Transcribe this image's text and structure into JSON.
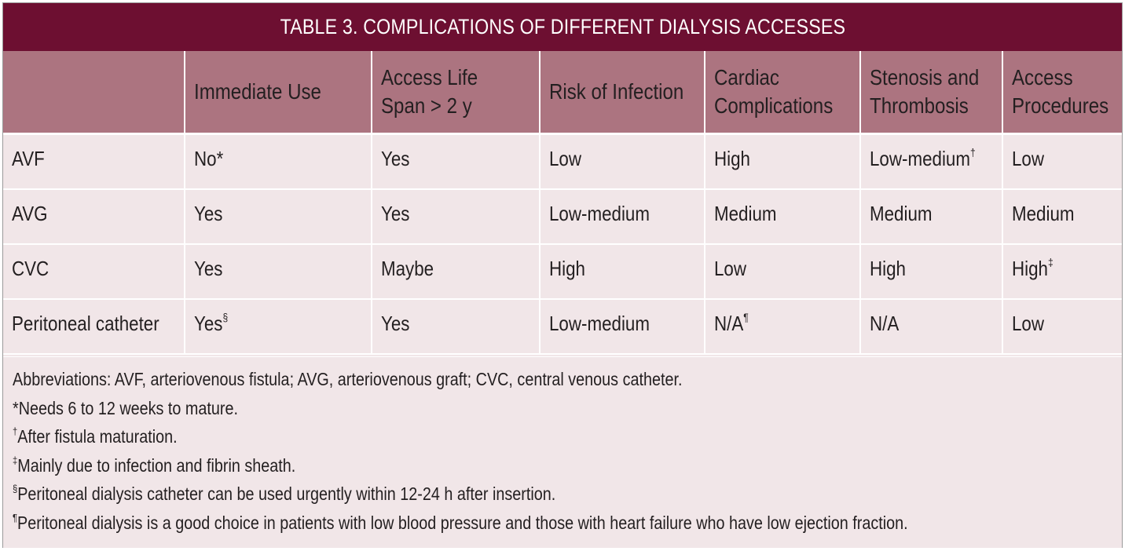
{
  "title": "TABLE 3.  COMPLICATIONS OF DIFFERENT DIALYSIS ACCESSES",
  "columns": [
    {
      "line1": "",
      "line2": ""
    },
    {
      "line1": "Immediate Use",
      "line2": ""
    },
    {
      "line1": "Access Life",
      "line2": "Span > 2 y"
    },
    {
      "line1": "Risk of Infection",
      "line2": ""
    },
    {
      "line1": "Cardiac",
      "line2": "Complications"
    },
    {
      "line1": "Stenosis and",
      "line2": "Thrombosis"
    },
    {
      "line1": "Access",
      "line2": "Procedures"
    }
  ],
  "rows": [
    {
      "cells": [
        {
          "text": "AVF",
          "sup": ""
        },
        {
          "text": "No*",
          "sup": ""
        },
        {
          "text": "Yes",
          "sup": ""
        },
        {
          "text": "Low",
          "sup": ""
        },
        {
          "text": "High",
          "sup": ""
        },
        {
          "text": "Low-medium",
          "sup": "†"
        },
        {
          "text": "Low",
          "sup": ""
        }
      ]
    },
    {
      "cells": [
        {
          "text": "AVG",
          "sup": ""
        },
        {
          "text": "Yes",
          "sup": ""
        },
        {
          "text": "Yes",
          "sup": ""
        },
        {
          "text": "Low-medium",
          "sup": ""
        },
        {
          "text": "Medium",
          "sup": ""
        },
        {
          "text": "Medium",
          "sup": ""
        },
        {
          "text": "Medium",
          "sup": ""
        }
      ]
    },
    {
      "cells": [
        {
          "text": "CVC",
          "sup": ""
        },
        {
          "text": "Yes",
          "sup": ""
        },
        {
          "text": "Maybe",
          "sup": ""
        },
        {
          "text": "High",
          "sup": ""
        },
        {
          "text": "Low",
          "sup": ""
        },
        {
          "text": "High",
          "sup": ""
        },
        {
          "text": "High",
          "sup": "‡"
        }
      ]
    },
    {
      "cells": [
        {
          "text": "Peritoneal catheter",
          "sup": ""
        },
        {
          "text": "Yes",
          "sup": "§"
        },
        {
          "text": "Yes",
          "sup": ""
        },
        {
          "text": "Low-medium",
          "sup": ""
        },
        {
          "text": "N/A",
          "sup": "¶"
        },
        {
          "text": "N/A",
          "sup": ""
        },
        {
          "text": "Low",
          "sup": ""
        }
      ]
    }
  ],
  "notes": [
    {
      "mark": "",
      "text": "Abbreviations: AVF, arteriovenous fistula; AVG, arteriovenous graft; CVC, central venous catheter."
    },
    {
      "mark": "",
      "text": "*Needs 6 to 12 weeks to mature."
    },
    {
      "mark": "†",
      "text": "After fistula maturation."
    },
    {
      "mark": "‡",
      "text": "Mainly due to infection and fibrin sheath."
    },
    {
      "mark": "§",
      "text": "Peritoneal dialysis catheter can be used urgently within 12-24 h after insertion."
    },
    {
      "mark": "¶",
      "text": "Peritoneal dialysis is a good choice in patients with low blood pressure and those with heart failure who have low ejection fraction."
    }
  ],
  "colors": {
    "title_bg": "#6d0f31",
    "header_bg": "#ac7480",
    "body_bg": "#f1e6e8"
  }
}
